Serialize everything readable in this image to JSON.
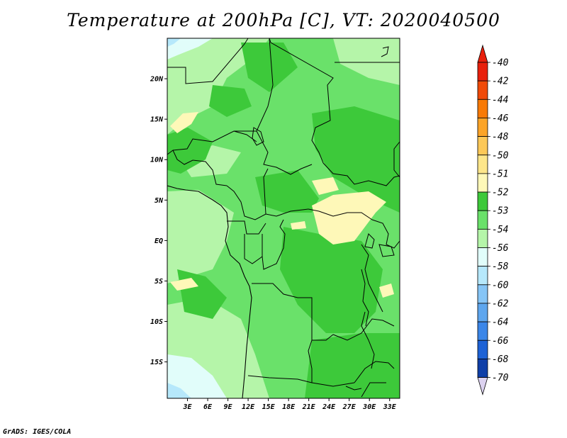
{
  "title": "Temperature at 200hPa [C], VT: 2020040500",
  "credit": "GrADS: IGES/COLA",
  "map": {
    "lon_range": [
      0,
      34.5
    ],
    "lat_range": [
      -19.5,
      25
    ],
    "lat_ticks": [
      {
        "value": 20,
        "label": "20N"
      },
      {
        "value": 15,
        "label": "15N"
      },
      {
        "value": 10,
        "label": "10N"
      },
      {
        "value": 5,
        "label": "5N"
      },
      {
        "value": 0,
        "label": "EQ"
      },
      {
        "value": -5,
        "label": "5S"
      },
      {
        "value": -10,
        "label": "10S"
      },
      {
        "value": -15,
        "label": "15S"
      }
    ],
    "lon_ticks": [
      {
        "value": 3,
        "label": "3E"
      },
      {
        "value": 6,
        "label": "6E"
      },
      {
        "value": 9,
        "label": "9E"
      },
      {
        "value": 12,
        "label": "12E"
      },
      {
        "value": 15,
        "label": "15E"
      },
      {
        "value": 18,
        "label": "18E"
      },
      {
        "value": 21,
        "label": "21E"
      },
      {
        "value": 24,
        "label": "24E"
      },
      {
        "value": 27,
        "label": "27E"
      },
      {
        "value": 30,
        "label": "30E"
      },
      {
        "value": 33,
        "label": "33E"
      }
    ]
  },
  "colorbar": {
    "labels": [
      "-40",
      "-42",
      "-44",
      "-46",
      "-48",
      "-50",
      "-51",
      "-52",
      "-53",
      "-54",
      "-56",
      "-58",
      "-60",
      "-62",
      "-64",
      "-66",
      "-68",
      "-70"
    ],
    "colors": [
      "#e8200c",
      "#f04a08",
      "#f87a06",
      "#fba428",
      "#fcc858",
      "#fde68a",
      "#fef8b8",
      "#3dc93a",
      "#6ae16a",
      "#b5f5a9",
      "#e1fdfa",
      "#b6e8fb",
      "#86c5f6",
      "#5ea6ee",
      "#3b86e8",
      "#1d62d6",
      "#0f3fa8",
      "#081f70"
    ],
    "top_color": "#e8200c",
    "bottom_color": "#dcd2f0"
  },
  "field_colors": {
    "-51": "#fef8b8",
    "-52": "#3dc93a",
    "-53": "#6ae16a",
    "-54": "#b5f5a9",
    "-56": "#e1fdfa",
    "-58": "#b6e8fb"
  }
}
